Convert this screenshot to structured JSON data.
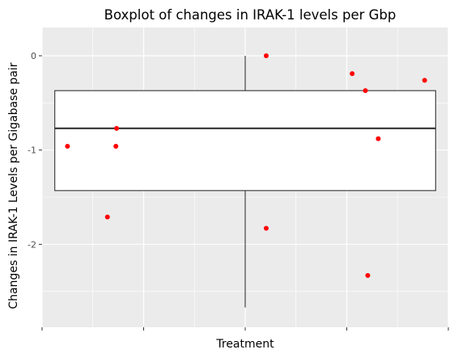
{
  "chart_data": {
    "type": "boxplot",
    "title": "Boxplot of changes in IRAK-1 levels per Gbp",
    "xlabel": "Treatment",
    "ylabel": "Changes in  IRAK-1 Levels per Gigabase pair",
    "xlim": [
      0.4,
      1.6
    ],
    "ylim": [
      -2.88,
      0.3
    ],
    "y_ticks": [
      0,
      -1,
      -2
    ],
    "y_tick_labels": [
      "0",
      "-1",
      "-2"
    ],
    "x_ticks": [
      0.4,
      0.7,
      1.0,
      1.3,
      1.6
    ],
    "x_tick_labels": [
      "",
      "",
      "",
      "",
      ""
    ],
    "grid": true,
    "box": {
      "x": 1.0,
      "width": 1.125,
      "whisker_low": -2.67,
      "q1": -1.43,
      "median": -0.77,
      "q3": -0.37,
      "whisker_high": 0.0
    },
    "points": [
      {
        "x": 0.475,
        "y": -0.96
      },
      {
        "x": 0.593,
        "y": -1.71
      },
      {
        "x": 0.62,
        "y": -0.77
      },
      {
        "x": 0.618,
        "y": -0.96
      },
      {
        "x": 1.062,
        "y": 0.0
      },
      {
        "x": 1.062,
        "y": -1.83
      },
      {
        "x": 1.316,
        "y": -0.19
      },
      {
        "x": 1.355,
        "y": -0.37
      },
      {
        "x": 1.362,
        "y": -2.33
      },
      {
        "x": 1.393,
        "y": -0.88
      },
      {
        "x": 1.53,
        "y": -0.26
      }
    ],
    "colors": {
      "panel": "#ebebeb",
      "grid": "#ffffff",
      "box_fill": "#ffffff",
      "box_line": "#333333",
      "points": "#ff0000"
    }
  }
}
